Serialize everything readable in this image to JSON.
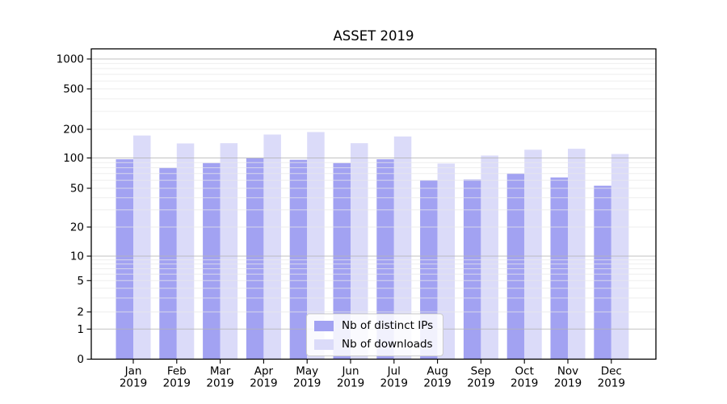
{
  "title": "ASSET 2019",
  "chart_data": {
    "type": "bar",
    "title": "ASSET 2019",
    "categories": [
      "Jan 2019",
      "Feb 2019",
      "Mar 2019",
      "Apr 2019",
      "May 2019",
      "Jun 2019",
      "Jul 2019",
      "Aug 2019",
      "Sep 2019",
      "Oct 2019",
      "Nov 2019",
      "Dec 2019"
    ],
    "series": [
      {
        "name": "Nb of distinct IPs",
        "color": "#a2a2f2",
        "values": [
          97,
          80,
          89,
          100,
          96,
          89,
          97,
          60,
          61,
          70,
          64,
          53
        ]
      },
      {
        "name": "Nb of downloads",
        "color": "#dbdbf9",
        "values": [
          172,
          142,
          143,
          176,
          187,
          143,
          168,
          88,
          106,
          122,
          125,
          110
        ]
      }
    ],
    "xlabel": "",
    "ylabel": "",
    "yscale": "symlog",
    "ylim": [
      0,
      1000
    ],
    "yticks": [
      0,
      1,
      2,
      5,
      10,
      20,
      50,
      100,
      200,
      500,
      1000
    ],
    "grid": {
      "shown": true,
      "major_color": "#b4b4b4",
      "minor_color": "#e9e9e9"
    },
    "legend_position": "lower-center"
  },
  "legend": {
    "items": [
      {
        "label": "Nb of distinct IPs",
        "color": "#a2a2f2"
      },
      {
        "label": "Nb of downloads",
        "color": "#dbdbf9"
      }
    ]
  }
}
